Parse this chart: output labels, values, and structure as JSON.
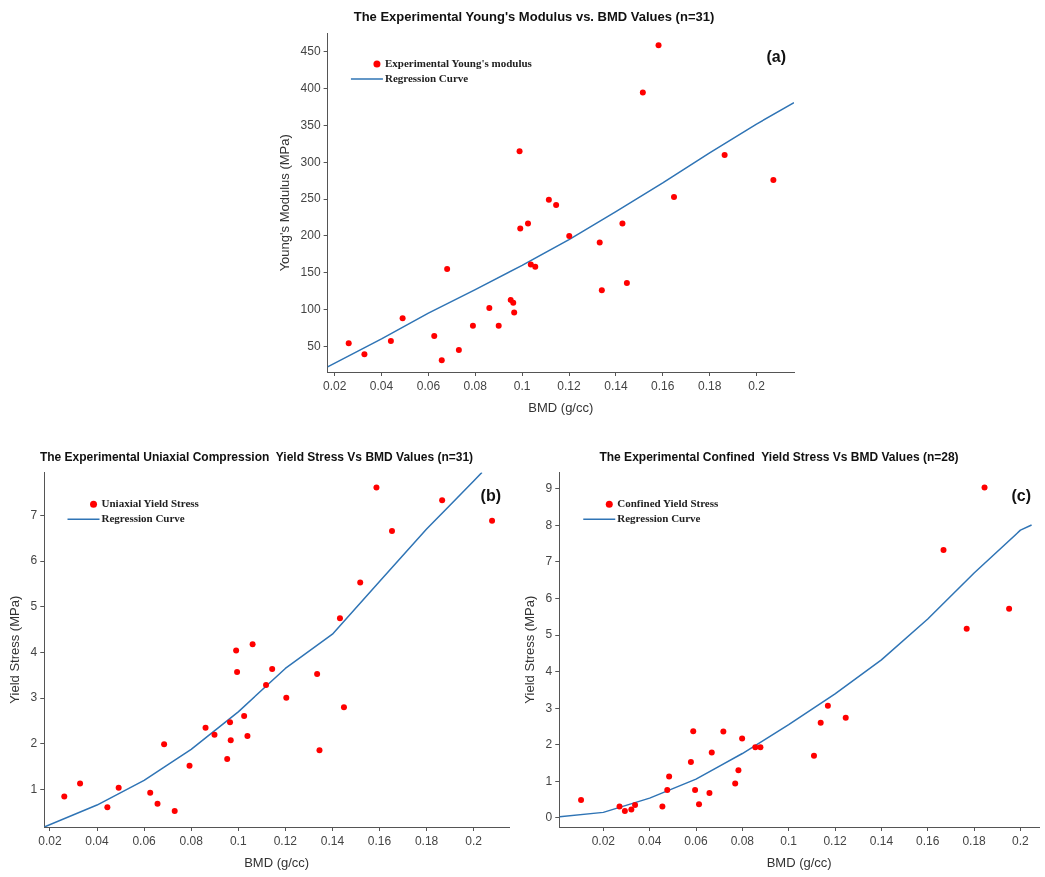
{
  "chart_data": [
    {
      "type": "scatter",
      "title": "The Experimental Young's Modulus vs. BMD Values (n=31)",
      "xlabel": "BMD (g/cc)",
      "ylabel": "Young's Modulus (MPa)",
      "annotations": [
        "(a)"
      ],
      "xlim": [
        0.017,
        0.216
      ],
      "ylim": [
        15,
        475
      ],
      "xticks": [
        0.02,
        0.04,
        0.06,
        0.08,
        0.1,
        0.12,
        0.14,
        0.16,
        0.18,
        0.2
      ],
      "yticks": [
        50,
        100,
        150,
        200,
        250,
        300,
        350,
        400,
        450
      ],
      "grid": false,
      "legend": "top left",
      "series": [
        {
          "name": "Experimental Young's modulus",
          "type": "scatter",
          "marker": "circle",
          "color": "#ff0000",
          "x": [
            0.026,
            0.0327,
            0.044,
            0.049,
            0.0625,
            0.0657,
            0.068,
            0.073,
            0.079,
            0.086,
            0.09,
            0.0951,
            0.0962,
            0.0966,
            0.0989,
            0.0992,
            0.1025,
            0.1037,
            0.1056,
            0.1114,
            0.1145,
            0.1201,
            0.1331,
            0.134,
            0.1428,
            0.1447,
            0.1515,
            0.1582,
            0.1648,
            0.1864,
            0.2072
          ],
          "values": [
            54,
            39,
            57,
            88,
            64,
            31,
            155,
            45,
            78,
            102,
            78,
            113,
            109,
            96,
            315,
            210,
            217,
            161,
            158,
            249,
            242,
            200,
            191,
            126,
            217,
            136,
            395,
            459,
            253,
            310,
            276
          ]
        },
        {
          "name": "Regression Curve",
          "type": "line",
          "marker": "none",
          "line_style": "solid",
          "color": "#2f74b5",
          "x": [
            0.017,
            0.04,
            0.06,
            0.08,
            0.1,
            0.12,
            0.14,
            0.16,
            0.18,
            0.2,
            0.216
          ],
          "values": [
            22,
            60,
            95,
            127,
            160,
            195,
            233,
            272,
            313,
            352,
            381
          ]
        }
      ]
    },
    {
      "type": "scatter",
      "title": "The Experimental Uniaxial Compression  Yield Stress Vs BMD Values (n=31)",
      "xlabel": "BMD (g/cc)",
      "ylabel": "Yield Stress (MPa)",
      "annotations": [
        "(b)"
      ],
      "xlim": [
        0.0176,
        0.215
      ],
      "ylim": [
        0.18,
        7.94
      ],
      "xticks": [
        0.02,
        0.04,
        0.06,
        0.08,
        0.1,
        0.12,
        0.14,
        0.16,
        0.18,
        0.2
      ],
      "yticks": [
        1,
        2,
        3,
        4,
        5,
        6,
        7
      ],
      "grid": false,
      "legend": "top left",
      "series": [
        {
          "name": "Uniaxial Yield Stress",
          "type": "scatter",
          "marker": "circle",
          "color": "#ff0000",
          "x": [
            0.0261,
            0.0328,
            0.0444,
            0.0492,
            0.0626,
            0.0657,
            0.0685,
            0.073,
            0.0793,
            0.0861,
            0.0899,
            0.0953,
            0.0965,
            0.0968,
            0.0991,
            0.0995,
            0.1025,
            0.1039,
            0.1061,
            0.1118,
            0.1144,
            0.1204,
            0.1335,
            0.1345,
            0.1432,
            0.1449,
            0.1518,
            0.1587,
            0.1653,
            0.1866,
            0.2078
          ],
          "values": [
            0.85,
            1.13,
            0.61,
            1.04,
            0.93,
            0.69,
            1.99,
            0.53,
            1.52,
            2.35,
            2.2,
            1.67,
            2.47,
            2.08,
            4.04,
            3.57,
            2.61,
            2.17,
            4.18,
            3.29,
            3.64,
            3.01,
            3.53,
            1.86,
            4.75,
            2.8,
            5.53,
            7.61,
            6.66,
            7.33,
            6.88
          ]
        },
        {
          "name": "Regression Curve",
          "type": "line",
          "marker": "none",
          "line_style": "solid",
          "color": "#2f74b5",
          "x": [
            0.0176,
            0.04,
            0.06,
            0.08,
            0.1,
            0.12,
            0.14,
            0.16,
            0.18,
            0.2,
            0.2035
          ],
          "values": [
            0.18,
            0.66,
            1.2,
            1.88,
            2.7,
            3.65,
            4.4,
            5.55,
            6.7,
            7.75,
            7.94
          ]
        }
      ]
    },
    {
      "type": "scatter",
      "title": "The Experimental Confined  Yield Stress Vs BMD Values (n=28)",
      "xlabel": "BMD (g/cc)",
      "ylabel": "Yield Stress (MPa)",
      "annotations": [
        "(c)"
      ],
      "xlim": [
        0.001,
        0.208
      ],
      "ylim": [
        -0.25,
        9.45
      ],
      "xticks": [
        0.02,
        0.04,
        0.06,
        0.08,
        0.1,
        0.12,
        0.14,
        0.16,
        0.18,
        0.2
      ],
      "yticks": [
        0,
        1,
        2,
        3,
        4,
        5,
        6,
        7,
        8,
        9
      ],
      "grid": false,
      "legend": "top left",
      "series": [
        {
          "name": "Confined Yield Stress",
          "type": "scatter",
          "marker": "circle",
          "color": "#ff0000",
          "x": [
            0.0104,
            0.027,
            0.0293,
            0.0321,
            0.0337,
            0.0455,
            0.0476,
            0.0484,
            0.0578,
            0.0588,
            0.0596,
            0.0613,
            0.0658,
            0.0668,
            0.0718,
            0.0769,
            0.0783,
            0.0799,
            0.0856,
            0.0878,
            0.1109,
            0.1138,
            0.1169,
            0.1246,
            0.1668,
            0.1768,
            0.1845,
            0.1951
          ],
          "values": [
            0.49,
            0.31,
            0.19,
            0.23,
            0.35,
            0.31,
            0.76,
            1.13,
            1.53,
            2.37,
            0.76,
            0.37,
            0.68,
            1.79,
            2.36,
            0.94,
            1.3,
            2.17,
            1.93,
            1.93,
            1.7,
            2.6,
            3.07,
            2.74,
            7.33,
            5.17,
            9.04,
            5.72
          ]
        },
        {
          "name": "Regression Curve",
          "type": "line",
          "marker": "none",
          "line_style": "solid",
          "color": "#2f74b5",
          "x": [
            0.0012,
            0.02,
            0.04,
            0.06,
            0.08,
            0.1,
            0.12,
            0.14,
            0.16,
            0.18,
            0.2,
            0.2048
          ],
          "values": [
            0.03,
            0.15,
            0.54,
            1.06,
            1.76,
            2.55,
            3.39,
            4.32,
            5.44,
            6.7,
            7.87,
            8.01
          ]
        }
      ]
    }
  ]
}
